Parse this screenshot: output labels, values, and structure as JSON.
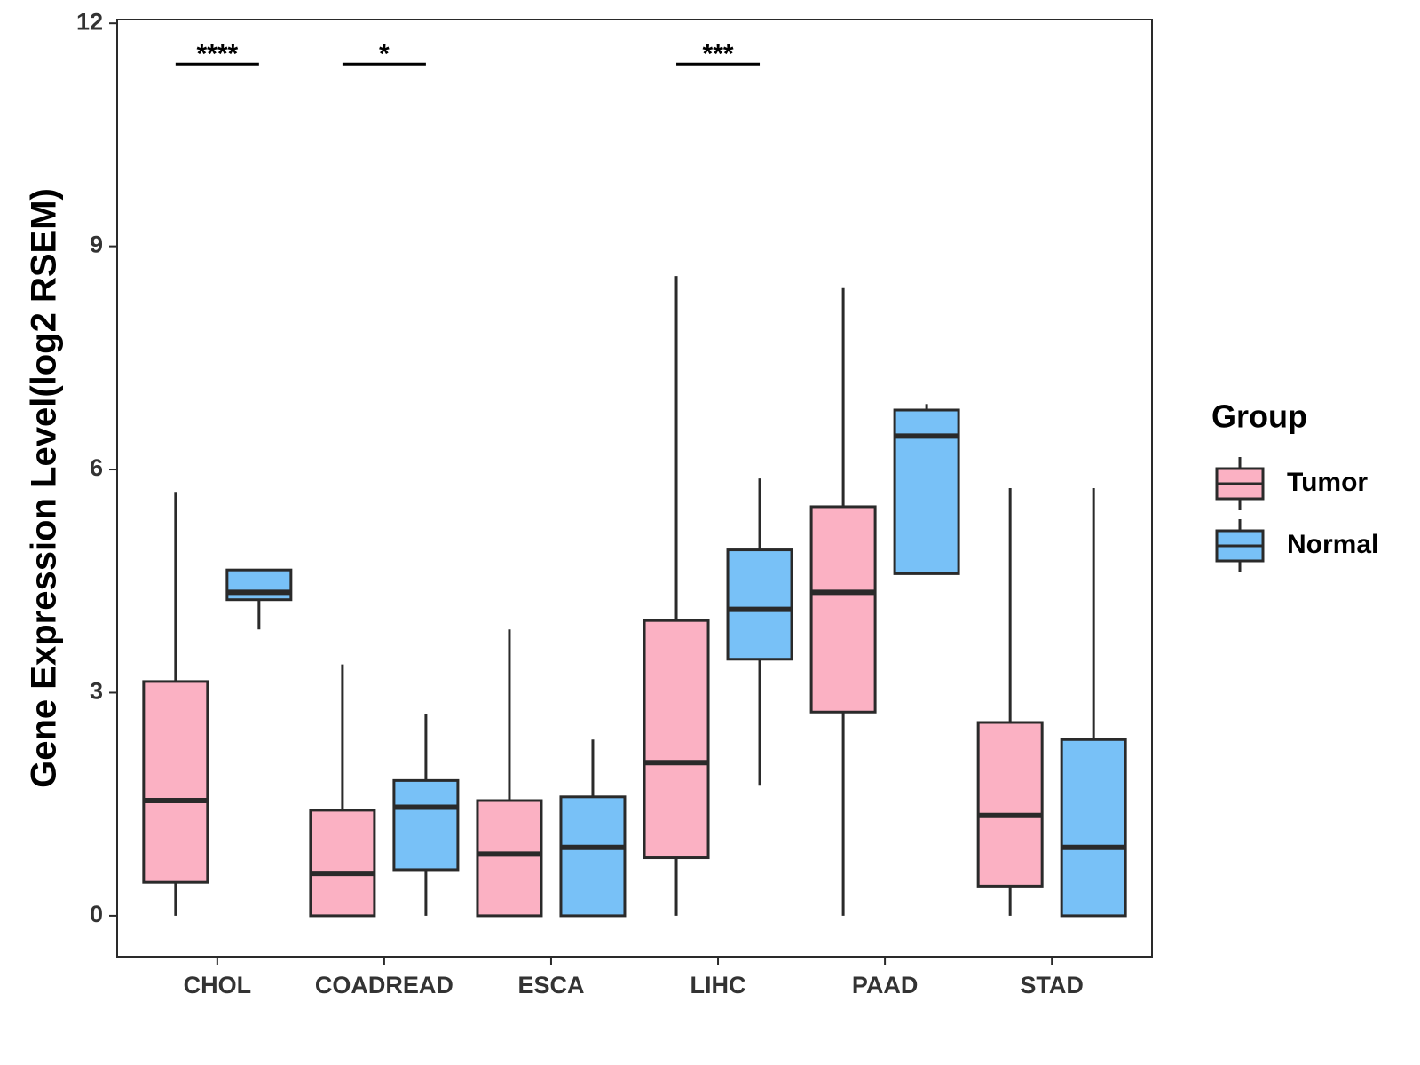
{
  "chart_data": {
    "type": "boxplot",
    "title": "",
    "xlabel": "",
    "ylabel": "Gene Expression Level(log2 RSEM)",
    "ylim": [
      -0.55,
      12.05
    ],
    "yticks": [
      0,
      3,
      6,
      9,
      12
    ],
    "categories": [
      "CHOL",
      "COADREAD",
      "ESCA",
      "LIHC",
      "PAAD",
      "STAD"
    ],
    "legend": {
      "title": "Group",
      "position": "right",
      "entries": [
        "Tumor",
        "Normal"
      ]
    },
    "colors": {
      "Tumor": "#fbb1c3",
      "Normal": "#78c1f7",
      "stroke": "#2a2a2a"
    },
    "series": [
      {
        "name": "Tumor",
        "boxes": [
          {
            "category": "CHOL",
            "whisker_low": 0,
            "q1": 0.45,
            "median": 1.55,
            "q3": 3.15,
            "whisker_high": 5.7
          },
          {
            "category": "COADREAD",
            "whisker_low": 0,
            "q1": 0,
            "median": 0.57,
            "q3": 1.42,
            "whisker_high": 3.38
          },
          {
            "category": "ESCA",
            "whisker_low": 0,
            "q1": 0,
            "median": 0.83,
            "q3": 1.55,
            "whisker_high": 3.85
          },
          {
            "category": "LIHC",
            "whisker_low": 0,
            "q1": 0.78,
            "median": 2.06,
            "q3": 3.97,
            "whisker_high": 8.6
          },
          {
            "category": "PAAD",
            "whisker_low": 0,
            "q1": 2.74,
            "median": 4.35,
            "q3": 5.5,
            "whisker_high": 8.45
          },
          {
            "category": "STAD",
            "whisker_low": 0,
            "q1": 0.4,
            "median": 1.35,
            "q3": 2.6,
            "whisker_high": 5.75
          }
        ]
      },
      {
        "name": "Normal",
        "boxes": [
          {
            "category": "CHOL",
            "whisker_low": 3.85,
            "q1": 4.25,
            "median": 4.35,
            "q3": 4.65,
            "whisker_high": 4.65
          },
          {
            "category": "COADREAD",
            "whisker_low": 0,
            "q1": 0.62,
            "median": 1.46,
            "q3": 1.82,
            "whisker_high": 2.72
          },
          {
            "category": "ESCA",
            "whisker_low": 0,
            "q1": 0,
            "median": 0.92,
            "q3": 1.6,
            "whisker_high": 2.37
          },
          {
            "category": "LIHC",
            "whisker_low": 1.75,
            "q1": 3.45,
            "median": 4.12,
            "q3": 4.92,
            "whisker_high": 5.88
          },
          {
            "category": "PAAD",
            "whisker_low": 4.6,
            "q1": 4.6,
            "median": 6.45,
            "q3": 6.8,
            "whisker_high": 6.88
          },
          {
            "category": "STAD",
            "whisker_low": 0,
            "q1": 0,
            "median": 0.92,
            "q3": 2.37,
            "whisker_high": 5.75
          }
        ]
      }
    ],
    "annotations": [
      {
        "category": "CHOL",
        "label": "****",
        "y": 11.45
      },
      {
        "category": "COADREAD",
        "label": "*",
        "y": 11.45
      },
      {
        "category": "LIHC",
        "label": "***",
        "y": 11.45
      }
    ]
  }
}
